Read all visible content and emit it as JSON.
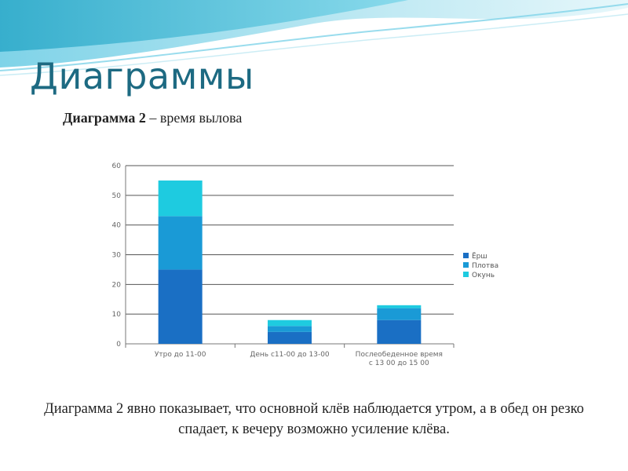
{
  "slide": {
    "title": "Диаграммы",
    "caption_bold": "Диаграмма 2",
    "caption_rest": " – время вылова",
    "body": "Диаграмма 2 явно показывает, что основной клёв наблюдается утром, а в обед он резко спадает, к вечеру возможно усиление клёва."
  },
  "colors": {
    "title": "#1d6a82",
    "wave_dark": "#2aa8c8",
    "wave_light": "#bfe9f3"
  },
  "chart_data": {
    "type": "bar",
    "stacked": true,
    "categories": [
      "Утро до 11-00",
      "День с11-00 до 13-00",
      [
        "Послеобеденное время",
        "с 13 00 до 15 00"
      ]
    ],
    "series": [
      {
        "name": "Ёрш",
        "color": "#1a6fc4",
        "values": [
          25,
          4,
          8
        ]
      },
      {
        "name": "Плотва",
        "color": "#1a9ad6",
        "values": [
          18,
          2,
          4
        ]
      },
      {
        "name": "Окунь",
        "color": "#1ecbe0",
        "values": [
          12,
          2,
          1
        ]
      }
    ],
    "ylim": [
      0,
      60
    ],
    "yticks": [
      0,
      10,
      20,
      30,
      40,
      50,
      60
    ],
    "grid": true,
    "legend": "right"
  }
}
